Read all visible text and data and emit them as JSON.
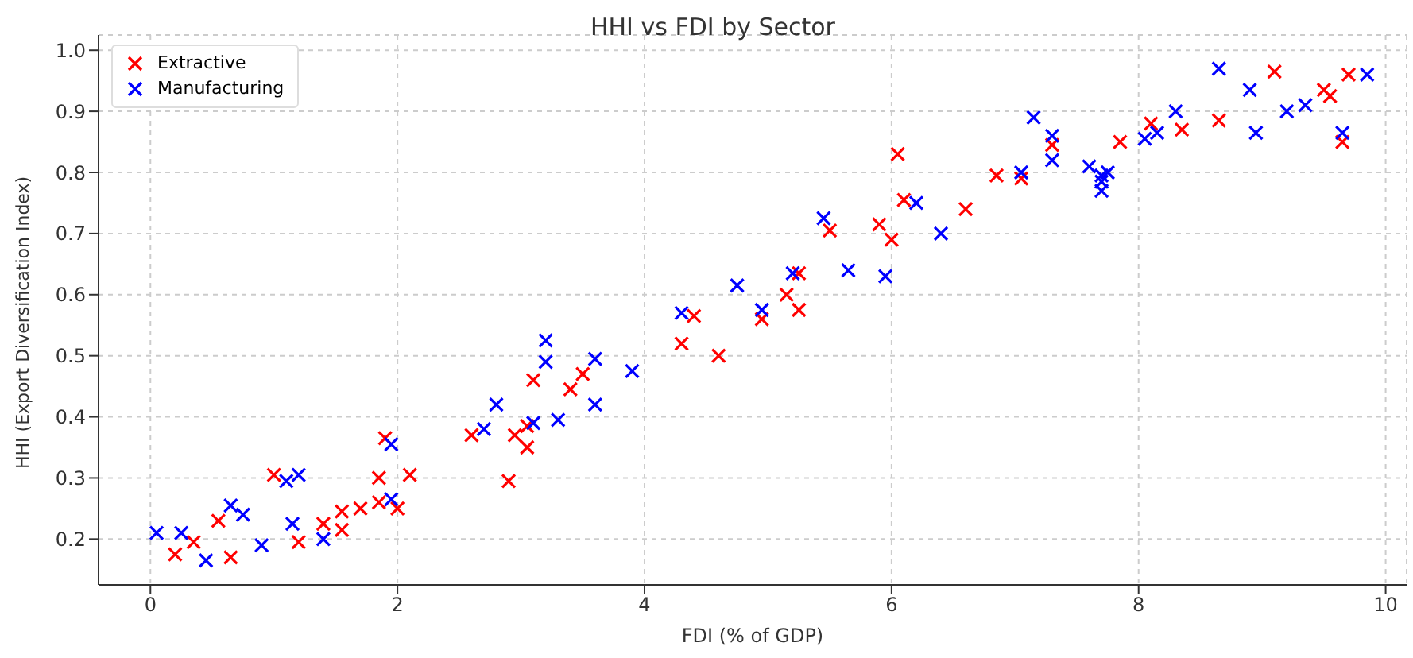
{
  "chart_data": {
    "type": "scatter",
    "title": "HHI vs FDI by Sector",
    "xlabel": "FDI (% of GDP)",
    "ylabel": "HHI (Export Diversification Index)",
    "xlim": [
      -0.42,
      10.17
    ],
    "ylim": [
      0.125,
      1.025
    ],
    "xticks": [
      0,
      2,
      4,
      6,
      8,
      10
    ],
    "yticks": [
      0.2,
      0.3,
      0.4,
      0.5,
      0.6,
      0.7,
      0.8,
      0.9,
      {
        "value": 1,
        "label": "1.0"
      }
    ],
    "grid": true,
    "legend": "top left",
    "marker": "cross",
    "series": [
      {
        "name": "Extractive",
        "color": "#ff0000",
        "x": [
          0.2,
          0.35,
          0.65,
          0.55,
          1.0,
          1.2,
          1.4,
          1.55,
          1.55,
          1.7,
          1.85,
          1.85,
          1.9,
          2.0,
          2.1,
          2.6,
          2.9,
          2.95,
          3.05,
          3.05,
          3.1,
          3.4,
          3.5,
          4.3,
          4.4,
          4.6,
          4.95,
          5.15,
          5.25,
          5.25,
          5.5,
          5.9,
          6.0,
          6.05,
          6.1,
          6.6,
          6.85,
          7.05,
          7.3,
          7.85,
          8.1,
          8.35,
          8.65,
          9.1,
          9.5,
          9.55,
          9.65,
          9.7
        ],
        "values": [
          0.175,
          0.195,
          0.17,
          0.23,
          0.305,
          0.195,
          0.225,
          0.215,
          0.245,
          0.25,
          0.26,
          0.3,
          0.365,
          0.25,
          0.305,
          0.37,
          0.295,
          0.37,
          0.35,
          0.385,
          0.46,
          0.445,
          0.47,
          0.52,
          0.565,
          0.5,
          0.56,
          0.6,
          0.575,
          0.635,
          0.705,
          0.715,
          0.69,
          0.83,
          0.755,
          0.74,
          0.795,
          0.79,
          0.845,
          0.85,
          0.88,
          0.87,
          0.885,
          0.965,
          0.935,
          0.925,
          0.85,
          0.96
        ]
      },
      {
        "name": "Manufacturing",
        "color": "#0000ff",
        "x": [
          0.05,
          0.25,
          0.45,
          0.65,
          0.75,
          0.9,
          1.1,
          1.2,
          1.15,
          1.4,
          1.95,
          1.95,
          2.7,
          2.8,
          3.1,
          3.2,
          3.2,
          3.3,
          3.6,
          3.6,
          3.9,
          4.3,
          4.75,
          4.95,
          5.2,
          5.45,
          5.65,
          5.95,
          6.2,
          6.4,
          7.05,
          7.15,
          7.3,
          7.3,
          7.6,
          7.7,
          7.7,
          7.7,
          7.75,
          8.05,
          8.15,
          8.3,
          8.65,
          8.9,
          8.95,
          9.2,
          9.35,
          9.65,
          9.85
        ],
        "values": [
          0.21,
          0.21,
          0.165,
          0.255,
          0.24,
          0.19,
          0.295,
          0.305,
          0.225,
          0.2,
          0.355,
          0.265,
          0.38,
          0.42,
          0.39,
          0.49,
          0.525,
          0.395,
          0.42,
          0.495,
          0.475,
          0.57,
          0.615,
          0.575,
          0.635,
          0.725,
          0.64,
          0.63,
          0.75,
          0.7,
          0.8,
          0.89,
          0.82,
          0.86,
          0.81,
          0.785,
          0.77,
          0.795,
          0.8,
          0.855,
          0.865,
          0.9,
          0.97,
          0.935,
          0.865,
          0.9,
          0.91,
          0.865,
          0.96
        ]
      }
    ]
  }
}
